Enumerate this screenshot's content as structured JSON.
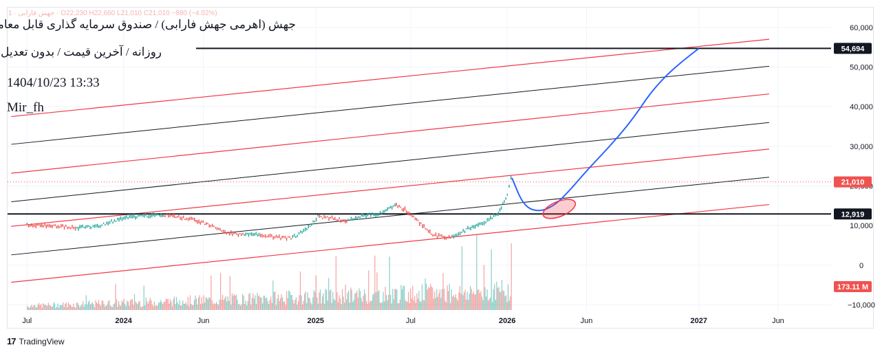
{
  "header": {
    "ohlc_faded": "1 · جهش فارابی · O22,230 H22,660 L21,010 C21,010 −880 (−4.02%)",
    "title": "جهش (اهرمی جهش فارابی) / صندوق سرمایه گذاری قابل معامله",
    "subtitle": "روزانه / آخرین قیمت / بدون تعدیل",
    "date": "1404/10/23 13:33",
    "author": "Mir_fh"
  },
  "footer": {
    "brand": "TradingView"
  },
  "colors": {
    "up": "#26a69a",
    "down": "#ef5350",
    "channel_red": "#f23645",
    "channel_black": "#131722",
    "projection": "#2962ff",
    "grid": "#f0f3fa"
  },
  "chart_data": {
    "type": "line",
    "title": "جهش (اهرمی جهش فارابی) / صندوق سرمایه گذاری قابل معامله",
    "timeframe": "daily",
    "x_axis_ticks": [
      "Jul",
      "2024",
      "Jun",
      "2025",
      "Jul",
      "2026",
      "Jun",
      "2027",
      "Jun"
    ],
    "x_axis_tick_dates": [
      "2023-07-01",
      "2024-01-01",
      "2024-06-01",
      "2025-01-01",
      "2025-07-01",
      "2026-01-01",
      "2026-06-01",
      "2027-01-01",
      "2027-06-01"
    ],
    "x_range": [
      "2023-05-25",
      "2027-09-10"
    ],
    "y_axis_ticks": [
      60000,
      50000,
      40000,
      30000,
      20000,
      10000,
      0,
      -10000
    ],
    "y_axis_labels": [
      "60,000",
      "50,000",
      "40,000",
      "30,000",
      "20,000",
      "10,000",
      "0",
      "−10,000"
    ],
    "ylim": [
      -12000,
      65000
    ],
    "price_series": {
      "name": "Close",
      "x": [
        "2023-07-01",
        "2023-08-01",
        "2023-09-01",
        "2023-10-01",
        "2023-11-15",
        "2024-01-01",
        "2024-02-15",
        "2024-03-15",
        "2024-04-15",
        "2024-05-15",
        "2024-06-15",
        "2024-07-15",
        "2024-08-15",
        "2024-09-15",
        "2024-10-15",
        "2024-11-15",
        "2024-12-15",
        "2025-01-05",
        "2025-02-01",
        "2025-03-01",
        "2025-04-01",
        "2025-05-01",
        "2025-06-01",
        "2025-06-20",
        "2025-07-15",
        "2025-08-15",
        "2025-09-15",
        "2025-10-15",
        "2025-11-15",
        "2025-12-15",
        "2026-01-01",
        "2026-01-08"
      ],
      "values": [
        10200,
        10100,
        9800,
        9400,
        9900,
        12000,
        12500,
        12700,
        12100,
        11500,
        10000,
        8200,
        7600,
        7800,
        7000,
        6800,
        9000,
        12300,
        11800,
        11200,
        12500,
        13000,
        15200,
        14000,
        11000,
        7500,
        6900,
        9000,
        10500,
        13000,
        18000,
        22000
      ]
    },
    "volume_series": {
      "name": "Volume",
      "last_label": "173.11 M"
    },
    "price_labels": [
      {
        "value": 54694,
        "label": "54,694",
        "color": "#131722"
      },
      {
        "value": 21010,
        "label": "21,010",
        "color": "#ef5350"
      },
      {
        "value": 12919,
        "label": "12,919",
        "color": "#131722"
      }
    ],
    "horizontal_lines": [
      54694,
      12919
    ],
    "last_price_dotted": 21010,
    "channel_lines": [
      {
        "color": "red",
        "x": [
          "2023-06-01",
          "2027-05-15"
        ],
        "y": [
          37500,
          57000
        ]
      },
      {
        "color": "black",
        "x": [
          "2023-06-01",
          "2027-05-15"
        ],
        "y": [
          30500,
          50200
        ]
      },
      {
        "color": "red",
        "x": [
          "2023-06-01",
          "2027-05-15"
        ],
        "y": [
          23200,
          43200
        ]
      },
      {
        "color": "black",
        "x": [
          "2023-06-01",
          "2027-05-15"
        ],
        "y": [
          16000,
          36000
        ]
      },
      {
        "color": "red",
        "x": [
          "2023-06-01",
          "2027-05-15"
        ],
        "y": [
          9800,
          29300
        ]
      },
      {
        "color": "black",
        "x": [
          "2023-06-01",
          "2027-05-15"
        ],
        "y": [
          2600,
          22200
        ]
      },
      {
        "color": "red",
        "x": [
          "2023-06-01",
          "2027-05-15"
        ],
        "y": [
          -4300,
          15300
        ]
      }
    ],
    "projection_path": {
      "x": [
        "2026-01-10",
        "2026-02-01",
        "2026-03-01",
        "2026-04-01",
        "2026-05-01",
        "2026-06-01",
        "2026-07-01",
        "2026-08-01",
        "2026-09-01",
        "2026-10-01",
        "2026-11-01",
        "2026-12-01",
        "2027-01-01"
      ],
      "y": [
        22000,
        15000,
        13400,
        15000,
        19000,
        23800,
        28000,
        32500,
        37600,
        43500,
        48000,
        51500,
        54694
      ]
    },
    "ellipse_marker": {
      "x": "2026-04-10",
      "y": 14200
    }
  }
}
